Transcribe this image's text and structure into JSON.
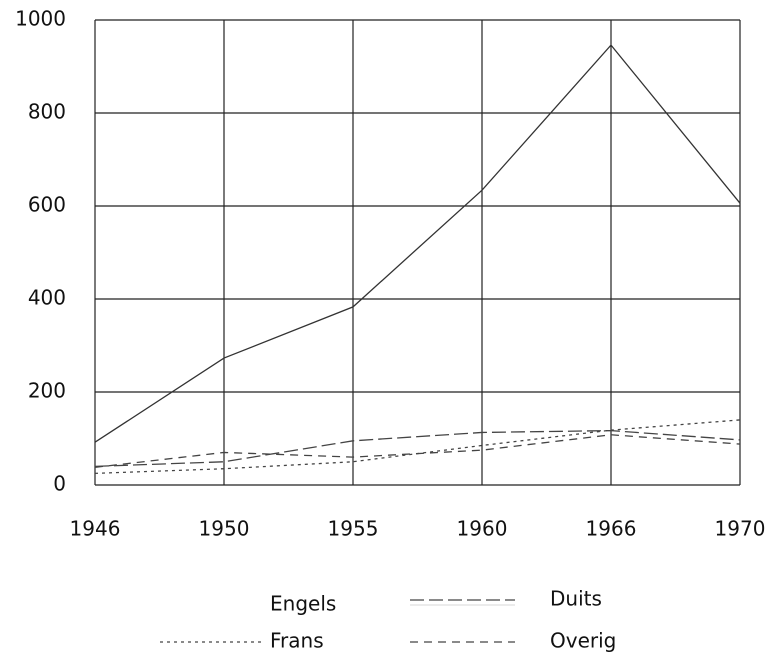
{
  "chart_data": {
    "type": "line",
    "categories": [
      "1946",
      "1950",
      "1955",
      "1960",
      "1966",
      "1970"
    ],
    "series": [
      {
        "name": "Engels",
        "color": "#333333",
        "dash": "none",
        "values": [
          92,
          273,
          383,
          634,
          946,
          606
        ]
      },
      {
        "name": "Duits",
        "color": "#444444",
        "dash": "14 5",
        "values": [
          40,
          50,
          95,
          113,
          117,
          97
        ]
      },
      {
        "name": "Frans",
        "color": "#444444",
        "dash": "3 4",
        "values": [
          25,
          35,
          50,
          85,
          118,
          140
        ]
      },
      {
        "name": "Overig",
        "color": "#444444",
        "dash": "8 6",
        "values": [
          38,
          70,
          60,
          75,
          108,
          88
        ]
      }
    ],
    "ylim": [
      0,
      1000
    ],
    "yticks": [
      0,
      200,
      400,
      600,
      800,
      1000
    ],
    "grid": true
  }
}
